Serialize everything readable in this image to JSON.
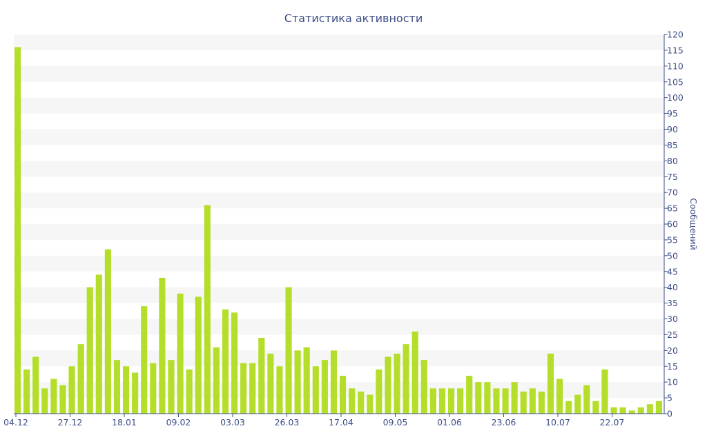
{
  "chart_data": {
    "type": "bar",
    "title": "Статистика активности",
    "xlabel": "",
    "ylabel": "Сообщений",
    "ylim": [
      0,
      120
    ],
    "y_ticks": [
      0,
      5,
      10,
      15,
      20,
      25,
      30,
      35,
      40,
      45,
      50,
      55,
      60,
      65,
      70,
      75,
      80,
      85,
      90,
      95,
      100,
      105,
      110,
      115,
      120
    ],
    "y_axis_side": "right",
    "grid": "alternating horizontal bands",
    "x_tick_labels": [
      {
        "label": "04.12",
        "index": 0
      },
      {
        "label": "27.12",
        "index": 6
      },
      {
        "label": "18.01",
        "index": 12
      },
      {
        "label": "09.02",
        "index": 18
      },
      {
        "label": "03.03",
        "index": 24
      },
      {
        "label": "26.03",
        "index": 30
      },
      {
        "label": "17.04",
        "index": 36
      },
      {
        "label": "09.05",
        "index": 42
      },
      {
        "label": "01.06",
        "index": 48
      },
      {
        "label": "23.06",
        "index": 54
      },
      {
        "label": "10.07",
        "index": 60
      },
      {
        "label": "22.07",
        "index": 66
      }
    ],
    "values": [
      116,
      14,
      18,
      8,
      11,
      9,
      15,
      22,
      40,
      44,
      52,
      17,
      15,
      13,
      34,
      16,
      43,
      17,
      38,
      14,
      37,
      66,
      21,
      33,
      32,
      16,
      16,
      24,
      19,
      15,
      40,
      20,
      21,
      15,
      17,
      20,
      12,
      8,
      7,
      6,
      14,
      18,
      19,
      22,
      26,
      17,
      8,
      8,
      8,
      8,
      12,
      10,
      10,
      8,
      8,
      10,
      7,
      8,
      7,
      19,
      11,
      4,
      6,
      9,
      4,
      14,
      2,
      2,
      1,
      2,
      3,
      4
    ],
    "colors": {
      "bar": "#b5de2b",
      "text": "#3d4f86",
      "band": "#f6f6f6",
      "axis": "#3d4f86"
    }
  }
}
